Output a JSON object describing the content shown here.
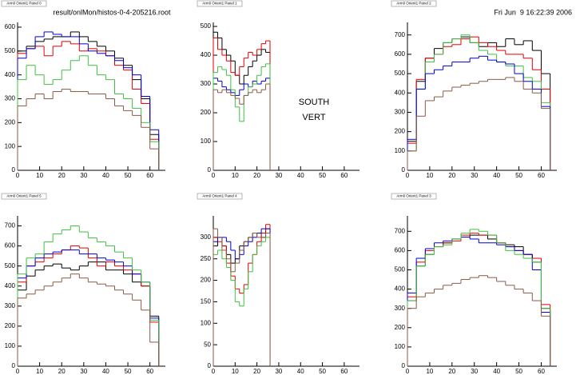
{
  "header": {
    "file": "result/onlMon/histos-0-4-205216.root",
    "date": "Fri Jun  9 16:22:39 2006"
  },
  "chart_data": [
    {
      "type": "histogram",
      "title": "Arm0 Orient1 Panel 0",
      "bins": [
        0,
        4,
        8,
        12,
        16,
        20,
        24,
        28,
        32,
        36,
        40,
        44,
        48,
        52,
        56,
        60,
        64
      ],
      "xlim": [
        0,
        67
      ],
      "xticks": [
        0,
        10,
        20,
        30,
        40,
        50,
        60
      ],
      "ylim": [
        0,
        620
      ],
      "yticks": [
        0,
        100,
        200,
        300,
        400,
        500,
        600
      ],
      "series": [
        {
          "color": "#000000",
          "values": [
            500,
            520,
            540,
            550,
            560,
            560,
            580,
            560,
            540,
            520,
            500,
            470,
            440,
            380,
            300,
            150
          ]
        },
        {
          "color": "#e00000",
          "values": [
            490,
            510,
            520,
            480,
            520,
            540,
            530,
            500,
            510,
            500,
            480,
            440,
            420,
            340,
            280,
            130
          ]
        },
        {
          "color": "#0000d0",
          "values": [
            470,
            510,
            560,
            580,
            570,
            560,
            560,
            530,
            500,
            490,
            480,
            460,
            430,
            400,
            310,
            170
          ]
        },
        {
          "color": "#40c040",
          "values": [
            380,
            440,
            400,
            360,
            380,
            420,
            460,
            480,
            440,
            400,
            380,
            320,
            300,
            260,
            200,
            120
          ]
        },
        {
          "color": "#8b5a46",
          "values": [
            270,
            300,
            320,
            300,
            330,
            340,
            330,
            330,
            320,
            320,
            300,
            270,
            250,
            230,
            180,
            90
          ]
        }
      ]
    },
    {
      "type": "histogram",
      "title": "Arm0 Orient1 Panel 1",
      "annotations": [
        "SOUTH",
        "VERT"
      ],
      "bins": [
        0,
        2,
        4,
        6,
        8,
        10,
        12,
        14,
        16,
        18,
        20,
        22,
        24,
        26
      ],
      "xlim": [
        0,
        67
      ],
      "xticks": [
        0,
        10,
        20,
        30,
        40,
        50,
        60
      ],
      "ylim": [
        0,
        514
      ],
      "yticks": [
        0,
        100,
        200,
        300,
        400,
        500
      ],
      "series": [
        {
          "color": "#000000",
          "values": [
            480,
            460,
            420,
            400,
            380,
            330,
            300,
            330,
            360,
            380,
            400,
            420,
            410
          ]
        },
        {
          "color": "#e00000",
          "values": [
            460,
            420,
            400,
            380,
            340,
            330,
            360,
            390,
            410,
            400,
            420,
            440,
            450
          ]
        },
        {
          "color": "#0000d0",
          "values": [
            320,
            310,
            290,
            280,
            270,
            260,
            280,
            300,
            290,
            310,
            300,
            310,
            320
          ]
        },
        {
          "color": "#40c040",
          "values": [
            340,
            360,
            350,
            330,
            280,
            220,
            170,
            260,
            290,
            300,
            330,
            360,
            370
          ]
        },
        {
          "color": "#8b5a46",
          "values": [
            280,
            270,
            280,
            270,
            260,
            250,
            230,
            260,
            270,
            280,
            270,
            280,
            300
          ]
        }
      ]
    },
    {
      "type": "histogram",
      "title": "Arm0 Orient1 Panel 2",
      "bins": [
        0,
        4,
        8,
        12,
        16,
        20,
        24,
        28,
        32,
        36,
        40,
        44,
        48,
        52,
        56,
        60,
        64
      ],
      "xlim": [
        0,
        67
      ],
      "xticks": [
        0,
        10,
        20,
        30,
        40,
        50,
        60
      ],
      "ylim": [
        0,
        765
      ],
      "yticks": [
        0,
        100,
        200,
        300,
        400,
        500,
        600,
        700
      ],
      "series": [
        {
          "color": "#000000",
          "values": [
            150,
            460,
            580,
            630,
            660,
            680,
            690,
            660,
            640,
            660,
            640,
            680,
            650,
            670,
            620,
            500
          ]
        },
        {
          "color": "#e00000",
          "values": [
            140,
            470,
            580,
            600,
            640,
            650,
            680,
            690,
            660,
            640,
            620,
            600,
            600,
            580,
            520,
            420
          ]
        },
        {
          "color": "#40c040",
          "values": [
            100,
            420,
            560,
            600,
            660,
            680,
            700,
            660,
            620,
            600,
            560,
            540,
            540,
            480,
            460,
            350
          ]
        },
        {
          "color": "#0000d0",
          "values": [
            160,
            420,
            500,
            520,
            540,
            560,
            560,
            580,
            590,
            570,
            560,
            550,
            500,
            460,
            420,
            330
          ]
        },
        {
          "color": "#8b5a46",
          "values": [
            100,
            280,
            360,
            380,
            410,
            430,
            440,
            450,
            460,
            470,
            470,
            480,
            460,
            420,
            400,
            320
          ]
        }
      ]
    },
    {
      "type": "histogram",
      "title": "Arm0 Orient1 Panel 5",
      "bins": [
        0,
        4,
        8,
        12,
        16,
        20,
        24,
        28,
        32,
        36,
        40,
        44,
        48,
        52,
        56,
        60,
        64
      ],
      "xlim": [
        0,
        67
      ],
      "xticks": [
        0,
        10,
        20,
        30,
        40,
        50,
        60
      ],
      "ylim": [
        0,
        750
      ],
      "yticks": [
        0,
        100,
        200,
        300,
        400,
        500,
        600,
        700
      ],
      "series": [
        {
          "color": "#000000",
          "values": [
            380,
            450,
            480,
            500,
            510,
            490,
            480,
            500,
            520,
            520,
            480,
            480,
            460,
            420,
            400,
            250
          ]
        },
        {
          "color": "#e00000",
          "values": [
            420,
            500,
            520,
            540,
            560,
            580,
            600,
            590,
            540,
            500,
            520,
            500,
            480,
            460,
            400,
            220
          ]
        },
        {
          "color": "#0000d0",
          "values": [
            440,
            500,
            540,
            560,
            570,
            580,
            580,
            560,
            560,
            540,
            530,
            520,
            500,
            460,
            420,
            240
          ]
        },
        {
          "color": "#40c040",
          "values": [
            460,
            540,
            560,
            620,
            660,
            680,
            700,
            670,
            640,
            620,
            600,
            570,
            540,
            480,
            420,
            230
          ]
        },
        {
          "color": "#8b5a46",
          "values": [
            340,
            360,
            380,
            400,
            420,
            440,
            460,
            440,
            420,
            410,
            400,
            380,
            360,
            330,
            280,
            120
          ]
        }
      ]
    },
    {
      "type": "histogram",
      "title": "Arm0 Orient1 Panel 4",
      "bins": [
        0,
        2,
        4,
        6,
        8,
        10,
        12,
        14,
        16,
        18,
        20,
        22,
        24,
        26
      ],
      "xlim": [
        0,
        67
      ],
      "xticks": [
        0,
        10,
        20,
        30,
        40,
        50,
        60
      ],
      "ylim": [
        0,
        350
      ],
      "yticks": [
        0,
        50,
        100,
        150,
        200,
        250,
        300
      ],
      "series": [
        {
          "color": "#000000",
          "values": [
            280,
            300,
            280,
            260,
            240,
            250,
            280,
            290,
            300,
            310,
            310,
            300,
            320
          ]
        },
        {
          "color": "#e00000",
          "values": [
            300,
            290,
            280,
            240,
            210,
            180,
            170,
            190,
            240,
            260,
            290,
            310,
            330
          ]
        },
        {
          "color": "#0000d0",
          "values": [
            290,
            300,
            300,
            290,
            270,
            250,
            260,
            280,
            290,
            300,
            310,
            320,
            320
          ]
        },
        {
          "color": "#40c040",
          "values": [
            260,
            270,
            250,
            230,
            200,
            150,
            140,
            180,
            220,
            260,
            280,
            290,
            300
          ]
        },
        {
          "color": "#8b5a46",
          "values": [
            320,
            300,
            270,
            250,
            220,
            240,
            270,
            290,
            300,
            310,
            300,
            300,
            310
          ]
        }
      ]
    },
    {
      "type": "histogram",
      "title": "Arm0 Orient1 Panel 3",
      "bins": [
        0,
        4,
        8,
        12,
        16,
        20,
        24,
        28,
        32,
        36,
        40,
        44,
        48,
        52,
        56,
        60,
        64
      ],
      "xlim": [
        0,
        67
      ],
      "xticks": [
        0,
        10,
        20,
        30,
        40,
        50,
        60
      ],
      "ylim": [
        0,
        780
      ],
      "yticks": [
        0,
        100,
        200,
        300,
        400,
        500,
        600,
        700
      ],
      "series": [
        {
          "color": "#000000",
          "values": [
            340,
            520,
            580,
            620,
            640,
            660,
            670,
            680,
            680,
            660,
            640,
            630,
            620,
            580,
            540,
            300
          ]
        },
        {
          "color": "#e00000",
          "values": [
            360,
            540,
            600,
            620,
            640,
            650,
            680,
            690,
            680,
            680,
            640,
            620,
            600,
            580,
            560,
            320
          ]
        },
        {
          "color": "#0000d0",
          "values": [
            380,
            560,
            610,
            640,
            650,
            660,
            670,
            660,
            640,
            640,
            630,
            620,
            600,
            580,
            500,
            280
          ]
        },
        {
          "color": "#40c040",
          "values": [
            340,
            520,
            580,
            620,
            630,
            660,
            690,
            710,
            700,
            680,
            640,
            600,
            580,
            560,
            540,
            300
          ]
        },
        {
          "color": "#8b5a46",
          "values": [
            300,
            360,
            380,
            400,
            420,
            430,
            450,
            460,
            470,
            460,
            440,
            420,
            400,
            380,
            340,
            260
          ]
        }
      ]
    }
  ]
}
